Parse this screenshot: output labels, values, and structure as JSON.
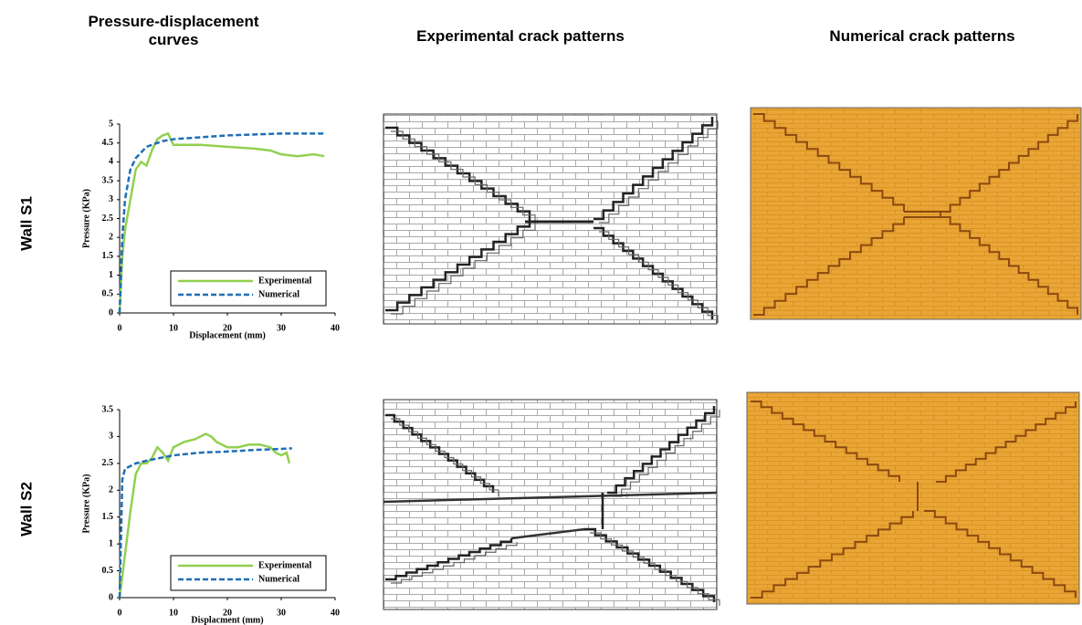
{
  "headers": [
    "Pressure-displacement curves",
    "Experimental crack patterns",
    "Numerical crack patterns"
  ],
  "row_labels": [
    "Wall S1",
    "Wall S2"
  ],
  "chart_data": [
    {
      "type": "line",
      "xlabel": "Displacement (mm)",
      "ylabel": "Pressure (KPa)",
      "xlim": [
        0,
        40
      ],
      "xticks": [
        0,
        10,
        20,
        30,
        40
      ],
      "ylim": [
        0,
        5
      ],
      "yticks": [
        0,
        0.5,
        1,
        1.5,
        2,
        2.5,
        3,
        3.5,
        4,
        4.5,
        5
      ],
      "grid": false,
      "legend": "lower right",
      "series": [
        {
          "name": "Experimental",
          "color": "#92d050",
          "style": "solid",
          "x": [
            0,
            0.5,
            1,
            2,
            3,
            4,
            5,
            6,
            7,
            8,
            9,
            10,
            15,
            20,
            25,
            28,
            30,
            33,
            36,
            38
          ],
          "values": [
            0,
            1.5,
            2.2,
            3,
            3.8,
            4.0,
            3.9,
            4.3,
            4.6,
            4.7,
            4.75,
            4.45,
            4.45,
            4.4,
            4.35,
            4.3,
            4.2,
            4.15,
            4.2,
            4.15
          ]
        },
        {
          "name": "Numerical",
          "color": "#1f6fb5",
          "style": "dashed",
          "x": [
            0,
            0.5,
            1,
            2,
            3,
            5,
            8,
            10,
            15,
            20,
            30,
            38
          ],
          "values": [
            0,
            2,
            3,
            3.8,
            4.1,
            4.4,
            4.55,
            4.6,
            4.65,
            4.7,
            4.75,
            4.75
          ]
        }
      ]
    },
    {
      "type": "line",
      "xlabel": "Displacment (mm)",
      "ylabel": "Pressure (KPa)",
      "xlim": [
        0,
        40
      ],
      "xticks": [
        0,
        10,
        20,
        30,
        40
      ],
      "ylim": [
        0,
        3.5
      ],
      "yticks": [
        0,
        0.5,
        1,
        1.5,
        2,
        2.5,
        3,
        3.5
      ],
      "grid": false,
      "legend": "lower right",
      "series": [
        {
          "name": "Experimental",
          "color": "#92d050",
          "style": "solid",
          "x": [
            0,
            1,
            2,
            3,
            4,
            5,
            6,
            7,
            8,
            9,
            10,
            12,
            14,
            16,
            17,
            18,
            20,
            22,
            24,
            26,
            28,
            29,
            30,
            31,
            31.5
          ],
          "values": [
            0,
            0.8,
            1.6,
            2.3,
            2.5,
            2.5,
            2.6,
            2.8,
            2.7,
            2.55,
            2.8,
            2.9,
            2.95,
            3.05,
            3.0,
            2.9,
            2.8,
            2.8,
            2.85,
            2.85,
            2.8,
            2.7,
            2.65,
            2.7,
            2.5
          ]
        },
        {
          "name": "Numerical",
          "color": "#1f6fb5",
          "style": "dashed",
          "x": [
            0,
            0.5,
            1,
            3,
            5,
            10,
            15,
            20,
            25,
            30,
            32
          ],
          "values": [
            0,
            2.2,
            2.4,
            2.5,
            2.55,
            2.65,
            2.7,
            2.72,
            2.75,
            2.77,
            2.78
          ]
        }
      ]
    }
  ]
}
